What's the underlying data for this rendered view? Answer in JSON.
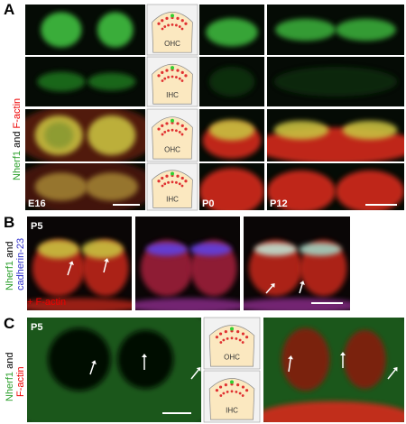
{
  "panels": [
    {
      "label": "A",
      "side_label": [
        "Nherf1",
        "and",
        "F-actin"
      ],
      "stage_labels": [
        "E16",
        "P0",
        "P12"
      ],
      "diagram_labels": [
        "OHC",
        "IHC",
        "OHC",
        "IHC"
      ]
    },
    {
      "label": "B",
      "stage_label": "P5",
      "side_label": [
        "Nherf1",
        "and",
        "cadherin-23"
      ],
      "bottom_label": "+ F-actin"
    },
    {
      "label": "C",
      "stage_label": "P5",
      "side_label": [
        "Nherf1",
        "and",
        "F-actin"
      ],
      "diagram_labels": [
        "OHC",
        "IHC"
      ]
    }
  ]
}
